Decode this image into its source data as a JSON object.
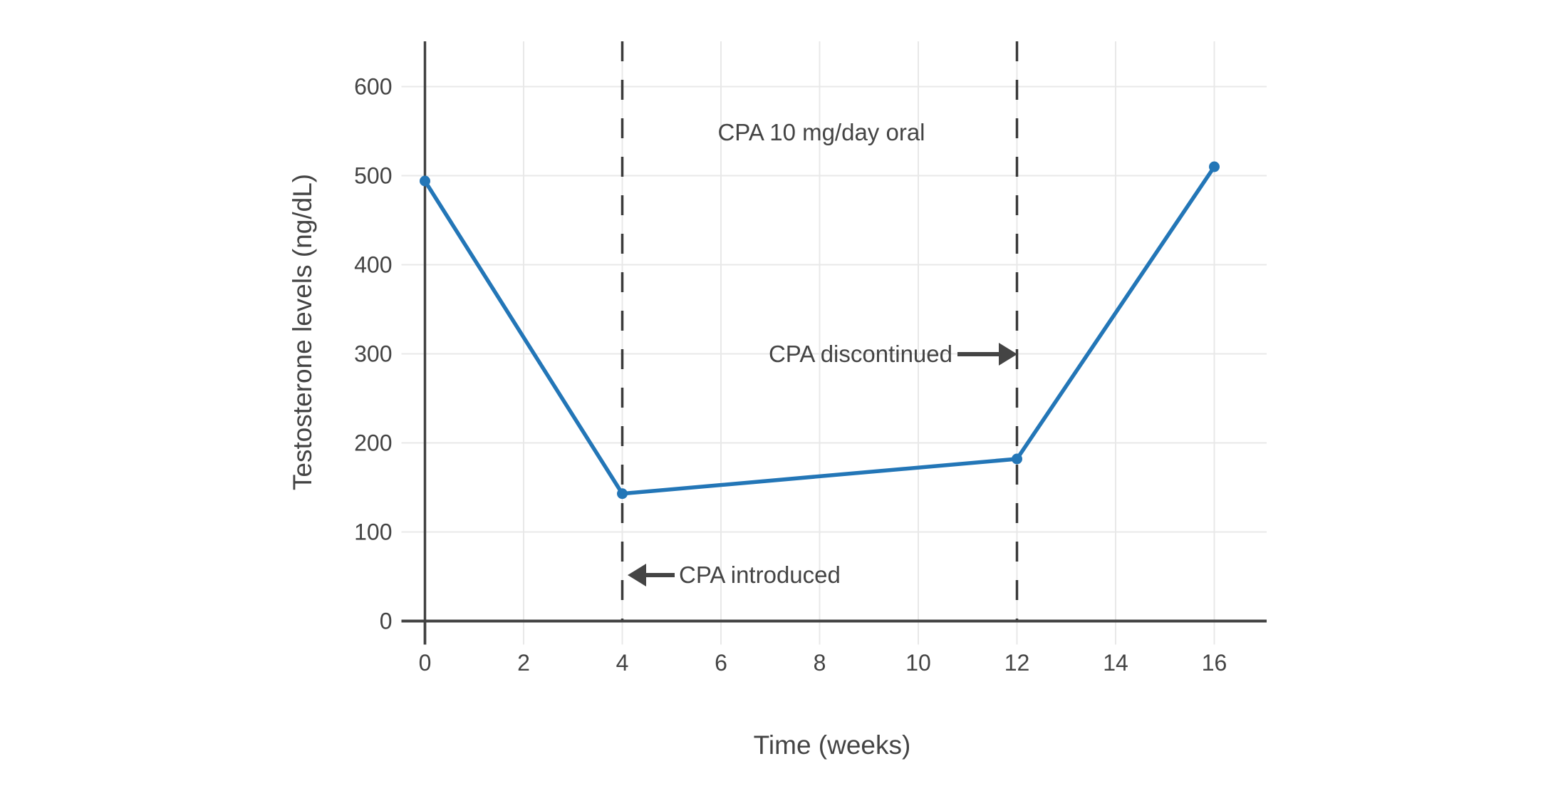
{
  "page": {
    "background": "#ffffff"
  },
  "chart_data": {
    "type": "line",
    "xlabel": "Time (weeks)",
    "ylabel": "Testosterone levels (ng/dL)",
    "x": [
      0,
      4,
      12,
      16
    ],
    "series": [
      {
        "name": "Testosterone",
        "values": [
          494,
          143,
          182,
          510
        ]
      }
    ],
    "xticks": [
      0,
      2,
      4,
      6,
      8,
      10,
      12,
      14,
      16
    ],
    "yticks": [
      0,
      100,
      200,
      300,
      400,
      500,
      600
    ],
    "xlim": [
      0,
      17
    ],
    "ylim": [
      0,
      650
    ],
    "grid": true,
    "legend": "none",
    "dashed_vlines": [
      4,
      12
    ],
    "annotations": [
      {
        "text": "CPA 10 mg/day oral",
        "x": 8,
        "y": 550,
        "arrow": "none"
      },
      {
        "text": "CPA discontinued",
        "x": 11.2,
        "y": 300,
        "arrow": "right",
        "points_to_week": 12
      },
      {
        "text": "CPA introduced",
        "x": 5.1,
        "y": 50,
        "arrow": "left",
        "points_to_week": 4
      }
    ],
    "colors": {
      "line": "#2376b7",
      "marker": "#2376b7",
      "grid": "#e8e8e8",
      "spine": "#424242",
      "dashed": "#3b3b3b",
      "text": "#444444"
    }
  }
}
